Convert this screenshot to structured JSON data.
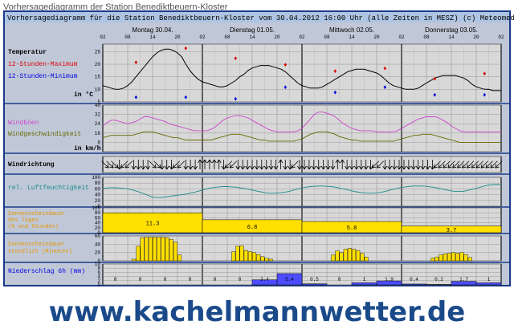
{
  "page_title": "Vorhersagediagramm der Station Benediktbeuern-Kloster",
  "header_text": "Vorhersagediagramm für die Station Benediktbeuern-Kloster vom 30.04.2012 16:00 Uhr (alle Zeiten in MESZ)  (c) Meteomedia",
  "watermark": "www.kachelmannwetter.de",
  "colors": {
    "frame": "#1a3a8a",
    "header_bg": "#aec4e3",
    "panel_bg": "#d8d8d8",
    "label_bg": "#c0c8d8",
    "sun_fill": "#ffe000",
    "precip_fill": "#4d4dff",
    "max_red": "#dd0000",
    "min_blue": "#0000dd",
    "wind_gust": "#cc44cc",
    "wind_speed": "#666600",
    "humidity": "#1a8a8a",
    "temp_line": "#000000",
    "watermark": "#1a4a8a"
  },
  "days": [
    "Montag 30.04.",
    "Dienstag 01.05.",
    "Mittwoch 02.05.",
    "Donnerstag 03.05."
  ],
  "hour_ticks": [
    "02",
    "08",
    "14",
    "20"
  ],
  "end_tick": "02",
  "panels": {
    "temperature": {
      "title": "Temperatur",
      "max_label": "12-Stunden-Maximum",
      "min_label": "12-Stunden-Minimum",
      "unit": "in °C",
      "ticks": [
        "5",
        "10",
        "15",
        "20",
        "25"
      ]
    },
    "wind": {
      "gust_label": "Windböen",
      "speed_label": "Windgeschwindigkeit",
      "unit": "in km/h",
      "ticks": [
        "8",
        "16",
        "24",
        "32",
        "40"
      ]
    },
    "direction": {
      "title": "Windrichtung"
    },
    "humidity": {
      "title": "rel. Luftfeuchtigkeit",
      "ticks": [
        "0",
        "20",
        "40",
        "60",
        "80",
        "100"
      ]
    },
    "sun_day": {
      "title": "Sonnenscheindauer des Tages (% und Stunden)",
      "ticks": [
        "0",
        "20",
        "40",
        "60",
        "80",
        "100"
      ]
    },
    "sun_hourly": {
      "title": "Sonnenscheindauer stündlich (Minuten)",
      "ticks": [
        "0",
        "20",
        "40",
        "60"
      ]
    },
    "precip": {
      "title": "Niederschlag 6h (mm)",
      "ticks": [
        "0",
        "2",
        "4",
        "6",
        "8",
        "10"
      ]
    }
  },
  "chart_data": {
    "type": "line",
    "title": "Vorhersagediagramm für die Station Benediktbeuern-Kloster vom 30.04.2012 16:00 Uhr",
    "x_start_hour": 2,
    "x_span_hours": 96,
    "temperature": {
      "ylim": [
        5,
        28
      ],
      "series_hourly": [
        11.5,
        11,
        10.5,
        10,
        10,
        10.5,
        11.5,
        13,
        15,
        17,
        19,
        21,
        23,
        24.5,
        25.5,
        26,
        26,
        25.5,
        24.5,
        23,
        20,
        17.5,
        15.5,
        14,
        13,
        12.5,
        12,
        11.5,
        11,
        11,
        11.5,
        12.5,
        13.5,
        15,
        16,
        17.5,
        18.5,
        19,
        19.5,
        19.5,
        19.5,
        19,
        18.5,
        18,
        17,
        15.5,
        14,
        12.5,
        11.5,
        11,
        10.5,
        10.5,
        10.5,
        11,
        12,
        13,
        14,
        15,
        16,
        17,
        17.5,
        18,
        18,
        18,
        17.5,
        17,
        16.5,
        15.5,
        14,
        12.5,
        11.5,
        11,
        10.5,
        10,
        10,
        10,
        10.5,
        11.5,
        12.5,
        13.5,
        14.5,
        15,
        15.5,
        15.5,
        15.5,
        15.5,
        15,
        14.5,
        13.5,
        12,
        11,
        10.5,
        10,
        10,
        9.5,
        9.5,
        9.5
      ],
      "max_points": [
        {
          "h": 8,
          "v": 21
        },
        {
          "h": 20,
          "v": 26.5
        },
        {
          "h": 32,
          "v": 22.5
        },
        {
          "h": 44,
          "v": 20
        },
        {
          "h": 56,
          "v": 17.5
        },
        {
          "h": 68,
          "v": 18.5
        },
        {
          "h": 80,
          "v": 14.5
        },
        {
          "h": 92,
          "v": 16.5
        }
      ],
      "min_points": [
        {
          "h": 8,
          "v": 7
        },
        {
          "h": 20,
          "v": 7
        },
        {
          "h": 32,
          "v": 6.5
        },
        {
          "h": 44,
          "v": 11
        },
        {
          "h": 56,
          "v": 9
        },
        {
          "h": 68,
          "v": 11
        },
        {
          "h": 80,
          "v": 8
        },
        {
          "h": 92,
          "v": 8
        }
      ]
    },
    "wind": {
      "ylim": [
        0,
        40
      ],
      "gust_hourly": [
        22,
        25,
        27,
        27,
        26,
        25,
        24,
        25,
        26,
        28,
        30,
        30,
        29,
        28,
        27,
        26,
        24,
        23,
        22,
        21,
        20,
        19,
        18,
        18,
        18,
        18,
        19,
        21,
        24,
        27,
        29,
        30,
        31,
        31,
        30,
        29,
        27,
        25,
        23,
        21,
        19,
        18,
        17,
        17,
        17,
        17,
        17,
        18,
        20,
        24,
        28,
        32,
        34,
        34,
        33,
        32,
        30,
        27,
        24,
        22,
        20,
        19,
        18,
        18,
        18,
        18,
        17,
        17,
        17,
        17,
        17,
        18,
        20,
        22,
        24,
        26,
        28,
        29,
        30,
        30,
        30,
        29,
        27,
        25,
        22,
        20,
        18,
        17,
        17,
        17,
        17,
        17,
        17,
        17,
        17,
        17,
        17
      ],
      "speed_hourly": [
        12,
        13,
        14,
        14,
        14,
        14,
        14,
        14,
        15,
        16,
        17,
        17,
        17,
        16,
        15,
        14,
        13,
        12,
        12,
        11,
        10,
        10,
        10,
        10,
        10,
        10,
        10,
        11,
        12,
        13,
        14,
        15,
        15,
        15,
        14,
        13,
        12,
        11,
        10,
        10,
        9,
        9,
        9,
        9,
        9,
        9,
        9,
        10,
        11,
        13,
        15,
        16,
        17,
        17,
        17,
        16,
        15,
        13,
        12,
        11,
        10,
        10,
        9,
        9,
        9,
        9,
        9,
        9,
        9,
        9,
        9,
        10,
        11,
        12,
        13,
        14,
        14,
        15,
        15,
        15,
        14,
        13,
        12,
        11,
        10,
        9,
        8,
        8,
        8,
        8,
        8,
        8,
        8,
        8,
        8,
        8,
        8
      ]
    },
    "wind_direction": [
      "NW",
      "NW",
      "NW",
      "N",
      "NE",
      "NE",
      "N",
      "N",
      "N",
      "N",
      "NW",
      "NW",
      "N",
      "N",
      "N",
      "NE",
      "NE",
      "N",
      "N",
      "N",
      "S",
      "S",
      "S",
      "S",
      "S",
      "N",
      "NE",
      "NE",
      "N",
      "N",
      "N",
      "N",
      "N",
      "N",
      "N",
      "N",
      "N",
      "S",
      "N",
      "N",
      "NE",
      "N",
      "N",
      "N",
      "N",
      "N",
      "N",
      "N",
      "N",
      "S",
      "S",
      "N",
      "N",
      "N",
      "N",
      "N",
      "N",
      "NE",
      "NE",
      "N",
      "N",
      "N",
      "N",
      "N",
      "N",
      "N",
      "N",
      "N",
      "N",
      "N",
      "NE",
      "NE",
      "NE",
      "NE",
      "NE",
      "NE",
      "NE",
      "NE",
      "NE",
      "NE",
      "NE",
      "NE",
      "NE",
      "NE"
    ],
    "humidity": {
      "ylim": [
        0,
        100
      ],
      "hourly": [
        62,
        63,
        64,
        64,
        63,
        62,
        60,
        57,
        53,
        48,
        43,
        37,
        32,
        30,
        30,
        32,
        34,
        36,
        38,
        40,
        42,
        45,
        48,
        52,
        56,
        60,
        63,
        65,
        67,
        68,
        68,
        67,
        66,
        64,
        62,
        59,
        56,
        53,
        50,
        47,
        45,
        45,
        46,
        47,
        49,
        52,
        56,
        60,
        63,
        66,
        68,
        69,
        70,
        70,
        69,
        68,
        66,
        63,
        60,
        57,
        53,
        50,
        48,
        46,
        45,
        45,
        46,
        48,
        51,
        55,
        59,
        62,
        65,
        67,
        69,
        70,
        70,
        70,
        69,
        67,
        65,
        62,
        59,
        56,
        53,
        51,
        51,
        52,
        55,
        58,
        62,
        66,
        70,
        73,
        75,
        75,
        76
      ]
    },
    "sunshine_daily": {
      "ylim": [
        0,
        100
      ],
      "days": [
        {
          "percent": 80,
          "hours": "11.3"
        },
        {
          "percent": 52,
          "hours": "6.8"
        },
        {
          "percent": 45,
          "hours": "5.8"
        },
        {
          "percent": 27,
          "hours": "3.7"
        }
      ]
    },
    "sunshine_hourly": {
      "ylim": [
        0,
        60
      ],
      "minutes": [
        0,
        0,
        0,
        0,
        0,
        0,
        0,
        4,
        35,
        56,
        57,
        57,
        57,
        57,
        57,
        56,
        52,
        45,
        14,
        0,
        0,
        0,
        0,
        0,
        0,
        0,
        0,
        0,
        0,
        0,
        0,
        22,
        35,
        36,
        25,
        22,
        20,
        15,
        10,
        6,
        4,
        0,
        0,
        0,
        0,
        0,
        0,
        0,
        0,
        0,
        0,
        0,
        0,
        0,
        0,
        14,
        24,
        20,
        28,
        30,
        28,
        25,
        18,
        9,
        0,
        0,
        0,
        0,
        0,
        0,
        0,
        0,
        0,
        0,
        0,
        0,
        0,
        0,
        0,
        6,
        9,
        14,
        17,
        18,
        20,
        18,
        20,
        15,
        8,
        0,
        0,
        0,
        0,
        0,
        0,
        0,
        0
      ]
    },
    "precipitation_6h": {
      "ylim": [
        0,
        10
      ],
      "blocks": [
        {
          "v": 0,
          "label": "0"
        },
        {
          "v": 0,
          "label": "0"
        },
        {
          "v": 0,
          "label": "0"
        },
        {
          "v": 0,
          "label": "0"
        },
        {
          "v": 0,
          "label": "0"
        },
        {
          "v": 0,
          "label": "0"
        },
        {
          "v": 2.4,
          "label": "2.4"
        },
        {
          "v": 5.4,
          "label": "5.4"
        },
        {
          "v": 0.5,
          "label": "0.5"
        },
        {
          "v": 0,
          "label": "0"
        },
        {
          "v": 1,
          "label": "1"
        },
        {
          "v": 1.9,
          "label": "1.9"
        },
        {
          "v": 0.4,
          "label": "0.4"
        },
        {
          "v": 0.2,
          "label": "0.2"
        },
        {
          "v": 1.7,
          "label": "1.7"
        },
        {
          "v": 1,
          "label": "1"
        }
      ]
    }
  }
}
